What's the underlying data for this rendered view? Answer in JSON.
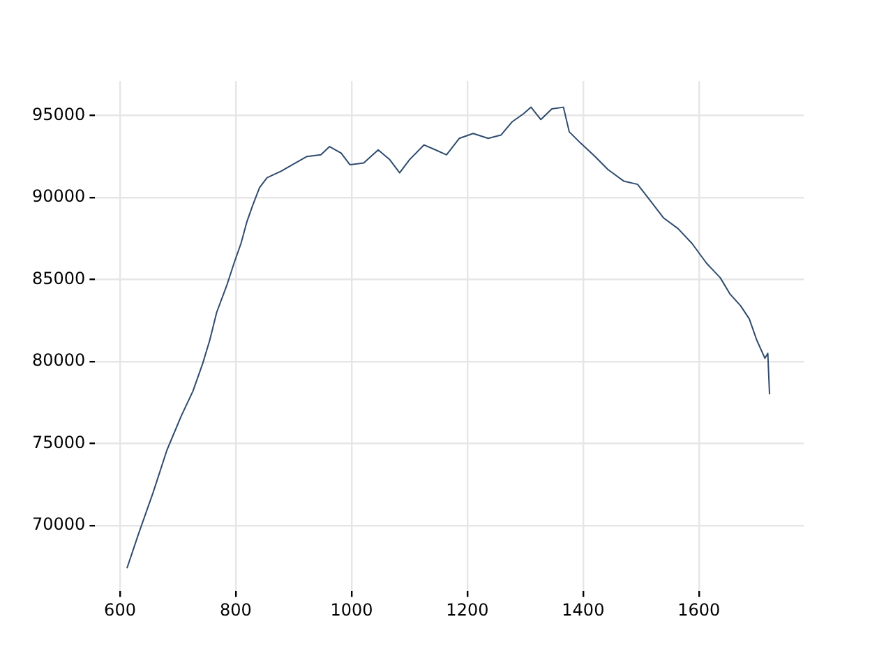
{
  "chart_data": {
    "type": "line",
    "x": [
      612,
      632,
      657,
      681,
      706,
      726,
      743,
      755,
      767,
      785,
      797,
      809,
      819,
      829,
      841,
      854,
      878,
      898,
      923,
      947,
      962,
      982,
      997,
      1021,
      1046,
      1066,
      1083,
      1100,
      1125,
      1145,
      1164,
      1186,
      1210,
      1236,
      1258,
      1277,
      1297,
      1310,
      1327,
      1346,
      1366,
      1376,
      1396,
      1419,
      1443,
      1470,
      1494,
      1514,
      1539,
      1564,
      1588,
      1613,
      1637,
      1654,
      1672,
      1687,
      1700,
      1714,
      1719,
      1722
    ],
    "series": [
      {
        "color": "#2f4b6e",
        "values": [
          67400,
          69500,
          72000,
          74600,
          76700,
          78200,
          79900,
          81300,
          83000,
          84700,
          86000,
          87200,
          88500,
          89500,
          90600,
          91200,
          91600,
          92000,
          92500,
          92600,
          93100,
          92700,
          92000,
          92100,
          92900,
          92300,
          91500,
          92300,
          93200,
          92900,
          92600,
          93600,
          93900,
          93600,
          93800,
          94600,
          95100,
          95500,
          94750,
          95400,
          95500,
          94000,
          93300,
          92550,
          91700,
          91000,
          90800,
          89900,
          88750,
          88100,
          87200,
          86000,
          85100,
          84100,
          83400,
          82600,
          81300,
          80200,
          80500,
          78000
        ]
      }
    ],
    "xlim": [
      557,
      1781
    ],
    "xticks": [
      600,
      800,
      1000,
      1200,
      1400,
      1600
    ],
    "ylim": [
      66000,
      97100
    ],
    "yticks": [
      70000,
      75000,
      80000,
      85000,
      90000,
      95000
    ],
    "grid": true,
    "legend": false,
    "marker": "none",
    "line_style": "solid"
  }
}
